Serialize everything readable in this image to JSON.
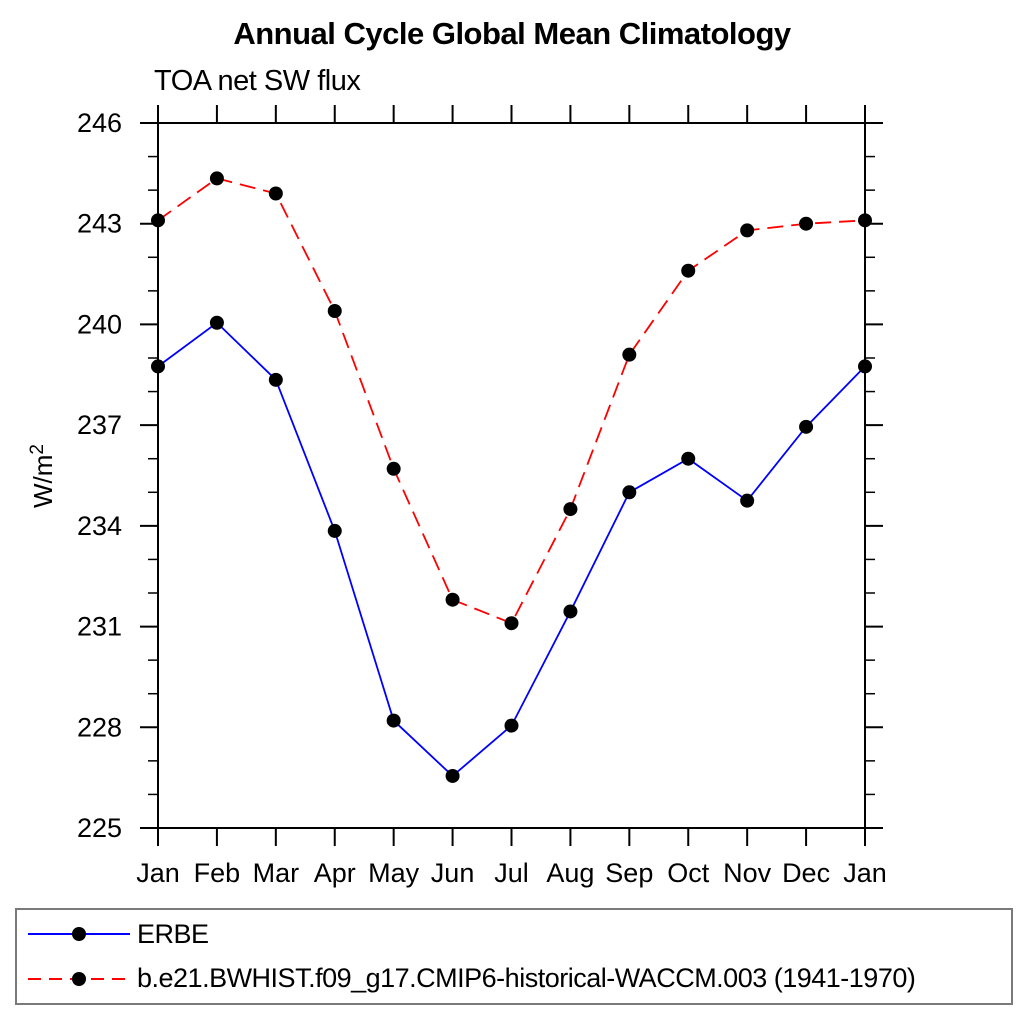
{
  "title": "Annual Cycle Global Mean Climatology",
  "subtitle": "TOA net SW flux",
  "chart_data": {
    "type": "line",
    "title": "Annual Cycle Global Mean Climatology",
    "subtitle": "TOA net SW flux",
    "xlabel": "",
    "ylabel": "W/m²",
    "categories": [
      "Jan",
      "Feb",
      "Mar",
      "Apr",
      "May",
      "Jun",
      "Jul",
      "Aug",
      "Sep",
      "Oct",
      "Nov",
      "Dec",
      "Jan"
    ],
    "ylim": [
      225,
      246
    ],
    "ytick_values": [
      225,
      228,
      231,
      234,
      237,
      240,
      243,
      246
    ],
    "ytick_labels": [
      "225",
      "228",
      "231",
      "234",
      "237",
      "240",
      "243",
      "246"
    ],
    "ytick_minor_step": 1,
    "grid": "off",
    "legend_position": "bottom-left-box",
    "marker_color": "#000000",
    "series": [
      {
        "name": "ERBE",
        "color": "#0000ff",
        "style": "solid",
        "marker": "filled-circle",
        "values": [
          238.75,
          240.05,
          238.35,
          233.85,
          228.2,
          226.55,
          228.05,
          231.45,
          235.0,
          236.0,
          234.75,
          236.95,
          238.75
        ]
      },
      {
        "name": "b.e21.BWHIST.f09_g17.CMIP6-historical-WACCM.003 (1941-1970)",
        "color": "#ff0000",
        "style": "dashed",
        "marker": "filled-circle",
        "values": [
          243.1,
          244.35,
          243.9,
          240.4,
          235.7,
          231.8,
          231.1,
          234.5,
          239.1,
          241.6,
          242.8,
          243.0,
          243.1
        ]
      }
    ]
  }
}
